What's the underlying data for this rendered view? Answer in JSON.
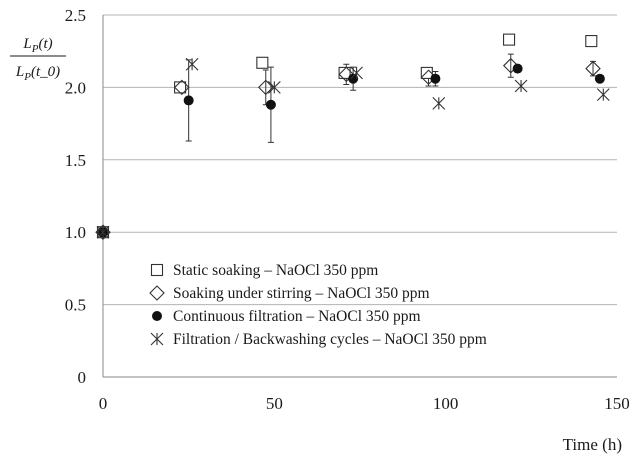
{
  "chart_data": {
    "type": "scatter",
    "title": "",
    "xlabel": "Time (h)",
    "ylabel_numerator": "L_P(t)",
    "ylabel_denominator": "L_P(t_0)",
    "xlim": [
      0,
      150
    ],
    "ylim": [
      0,
      2.5
    ],
    "x_ticks": [
      0,
      50,
      100,
      150
    ],
    "y_ticks": [
      0,
      0.5,
      1.0,
      1.5,
      2.0,
      2.5
    ],
    "y_tick_labels": [
      "0",
      "0.5",
      "1.0",
      "1.5",
      "2.0",
      "2.5"
    ],
    "grid": "horizontal",
    "legend_position": "lower-left",
    "series": [
      {
        "name": "Static soaking – NaOCl 350 ppm",
        "marker": "open-square",
        "x": [
          0,
          22.5,
          46.5,
          70.5,
          94.5,
          118.5,
          142.5
        ],
        "y": [
          1.0,
          2.0,
          2.17,
          2.1,
          2.1,
          2.33,
          2.32
        ]
      },
      {
        "name": "Soaking under stirring – NaOCl 350 ppm",
        "marker": "open-diamond",
        "x": [
          0,
          23,
          47.5,
          71,
          95,
          119,
          143
        ],
        "y": [
          1.0,
          2.0,
          2.0,
          2.09,
          2.07,
          2.15,
          2.13
        ],
        "err": [
          0,
          0,
          0.12,
          0.07,
          0.06,
          0.08,
          0.05
        ]
      },
      {
        "name": "Continuous filtration – NaOCl 350 ppm",
        "marker": "filled-circle",
        "x": [
          0,
          25,
          49,
          73,
          97,
          121,
          145
        ],
        "y": [
          1.0,
          1.91,
          1.88,
          2.06,
          2.06,
          2.13,
          2.06
        ],
        "err": [
          0,
          0.28,
          0.26,
          0.08,
          0.05,
          0,
          0
        ]
      },
      {
        "name": "Filtration / Backwashing cycles – NaOCl 350 ppm",
        "marker": "asterisk",
        "x": [
          0,
          26,
          50,
          74,
          98,
          122,
          146
        ],
        "y": [
          1.0,
          2.16,
          2.0,
          2.1,
          1.89,
          2.01,
          1.95
        ]
      }
    ]
  }
}
